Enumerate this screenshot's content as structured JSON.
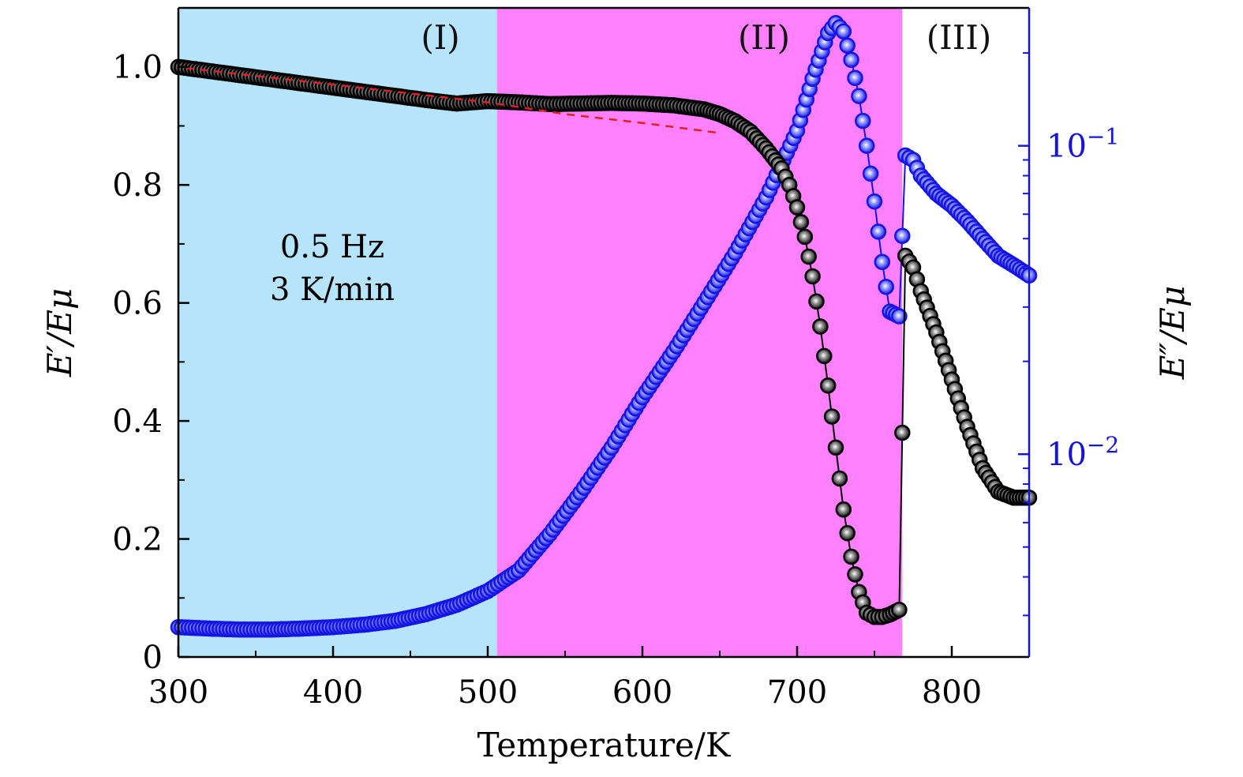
{
  "chart_data": {
    "type": "scatter",
    "xlabel": "Temperature/K",
    "ylabel": "E′/Eμ",
    "ylabel_right": "E″/Eμ",
    "xlim": [
      300,
      850
    ],
    "ylim": [
      0,
      1.1
    ],
    "ylim_right": [
      0.0022,
      0.28
    ],
    "right_axis_scale": "log",
    "x_ticks": [
      300,
      400,
      500,
      600,
      700,
      800
    ],
    "x_tick_labels": [
      "300",
      "400",
      "500",
      "600",
      "700",
      "800"
    ],
    "y_ticks": [
      0,
      0.2,
      0.4,
      0.6,
      0.8,
      1.0
    ],
    "y_tick_labels": [
      "0",
      "0.2",
      "0.4",
      "0.6",
      "0.8",
      "1.0"
    ],
    "y_right_ticks": [
      0.01,
      0.1
    ],
    "y_right_tick_labels": [
      {
        "base": "10",
        "exp": "−2"
      },
      {
        "base": "10",
        "exp": "−1"
      }
    ],
    "annotations": [
      "0.5 Hz",
      "3 K/min"
    ],
    "regions": [
      {
        "label": "(I)",
        "x_start": 300,
        "x_end": 506,
        "color": "#b6e4fb"
      },
      {
        "label": "(II)",
        "x_start": 506,
        "x_end": 768,
        "color": "#ff80ff"
      },
      {
        "label": "(III)",
        "x_start": 768,
        "x_end": 850,
        "color": "#ffffff"
      }
    ],
    "series": [
      {
        "axis": "left",
        "color": "#000000",
        "x": [
          300,
          320,
          340,
          360,
          380,
          400,
          420,
          440,
          460,
          480,
          500,
          520,
          540,
          560,
          580,
          600,
          620,
          640,
          650,
          660,
          670,
          680,
          690,
          695,
          700,
          705,
          710,
          715,
          720,
          725,
          730,
          735,
          740,
          745,
          750,
          755,
          760,
          766,
          770,
          775,
          780,
          790,
          800,
          810,
          820,
          830,
          840,
          850
        ],
        "y": [
          1.0,
          0.993,
          0.986,
          0.979,
          0.972,
          0.965,
          0.958,
          0.951,
          0.944,
          0.938,
          0.942,
          0.94,
          0.937,
          0.938,
          0.939,
          0.938,
          0.935,
          0.928,
          0.92,
          0.908,
          0.89,
          0.862,
          0.828,
          0.8,
          0.762,
          0.712,
          0.645,
          0.56,
          0.46,
          0.355,
          0.25,
          0.17,
          0.11,
          0.075,
          0.068,
          0.068,
          0.072,
          0.08,
          0.68,
          0.66,
          0.62,
          0.55,
          0.47,
          0.39,
          0.32,
          0.28,
          0.27,
          0.27
        ]
      },
      {
        "axis": "left",
        "color": "#e02020",
        "style": "dashed",
        "x": [
          305,
          400,
          500,
          550,
          600,
          650
        ],
        "y": [
          0.998,
          0.97,
          0.94,
          0.92,
          0.905,
          0.888
        ]
      },
      {
        "axis": "right",
        "color": "#1414e6",
        "x": [
          300,
          320,
          340,
          360,
          380,
          400,
          420,
          440,
          460,
          480,
          500,
          520,
          540,
          560,
          580,
          600,
          620,
          640,
          660,
          680,
          700,
          710,
          720,
          725,
          730,
          735,
          740,
          745,
          750,
          755,
          760,
          766,
          770,
          775,
          780,
          790,
          800,
          810,
          820,
          830,
          840,
          850
        ],
        "y": [
          0.00275,
          0.00272,
          0.0027,
          0.0027,
          0.00272,
          0.00275,
          0.0028,
          0.00288,
          0.00303,
          0.00325,
          0.0036,
          0.0042,
          0.0055,
          0.0075,
          0.0105,
          0.0153,
          0.0215,
          0.031,
          0.045,
          0.068,
          0.112,
          0.165,
          0.232,
          0.25,
          0.235,
          0.19,
          0.145,
          0.1,
          0.066,
          0.042,
          0.029,
          0.028,
          0.093,
          0.09,
          0.08,
          0.07,
          0.064,
          0.057,
          0.05,
          0.044,
          0.041,
          0.038
        ]
      }
    ]
  },
  "colors": {
    "left_series": "#000000",
    "right_series": "#1414e6",
    "right_axis": "#1515d8",
    "fit_line": "#e02020"
  }
}
